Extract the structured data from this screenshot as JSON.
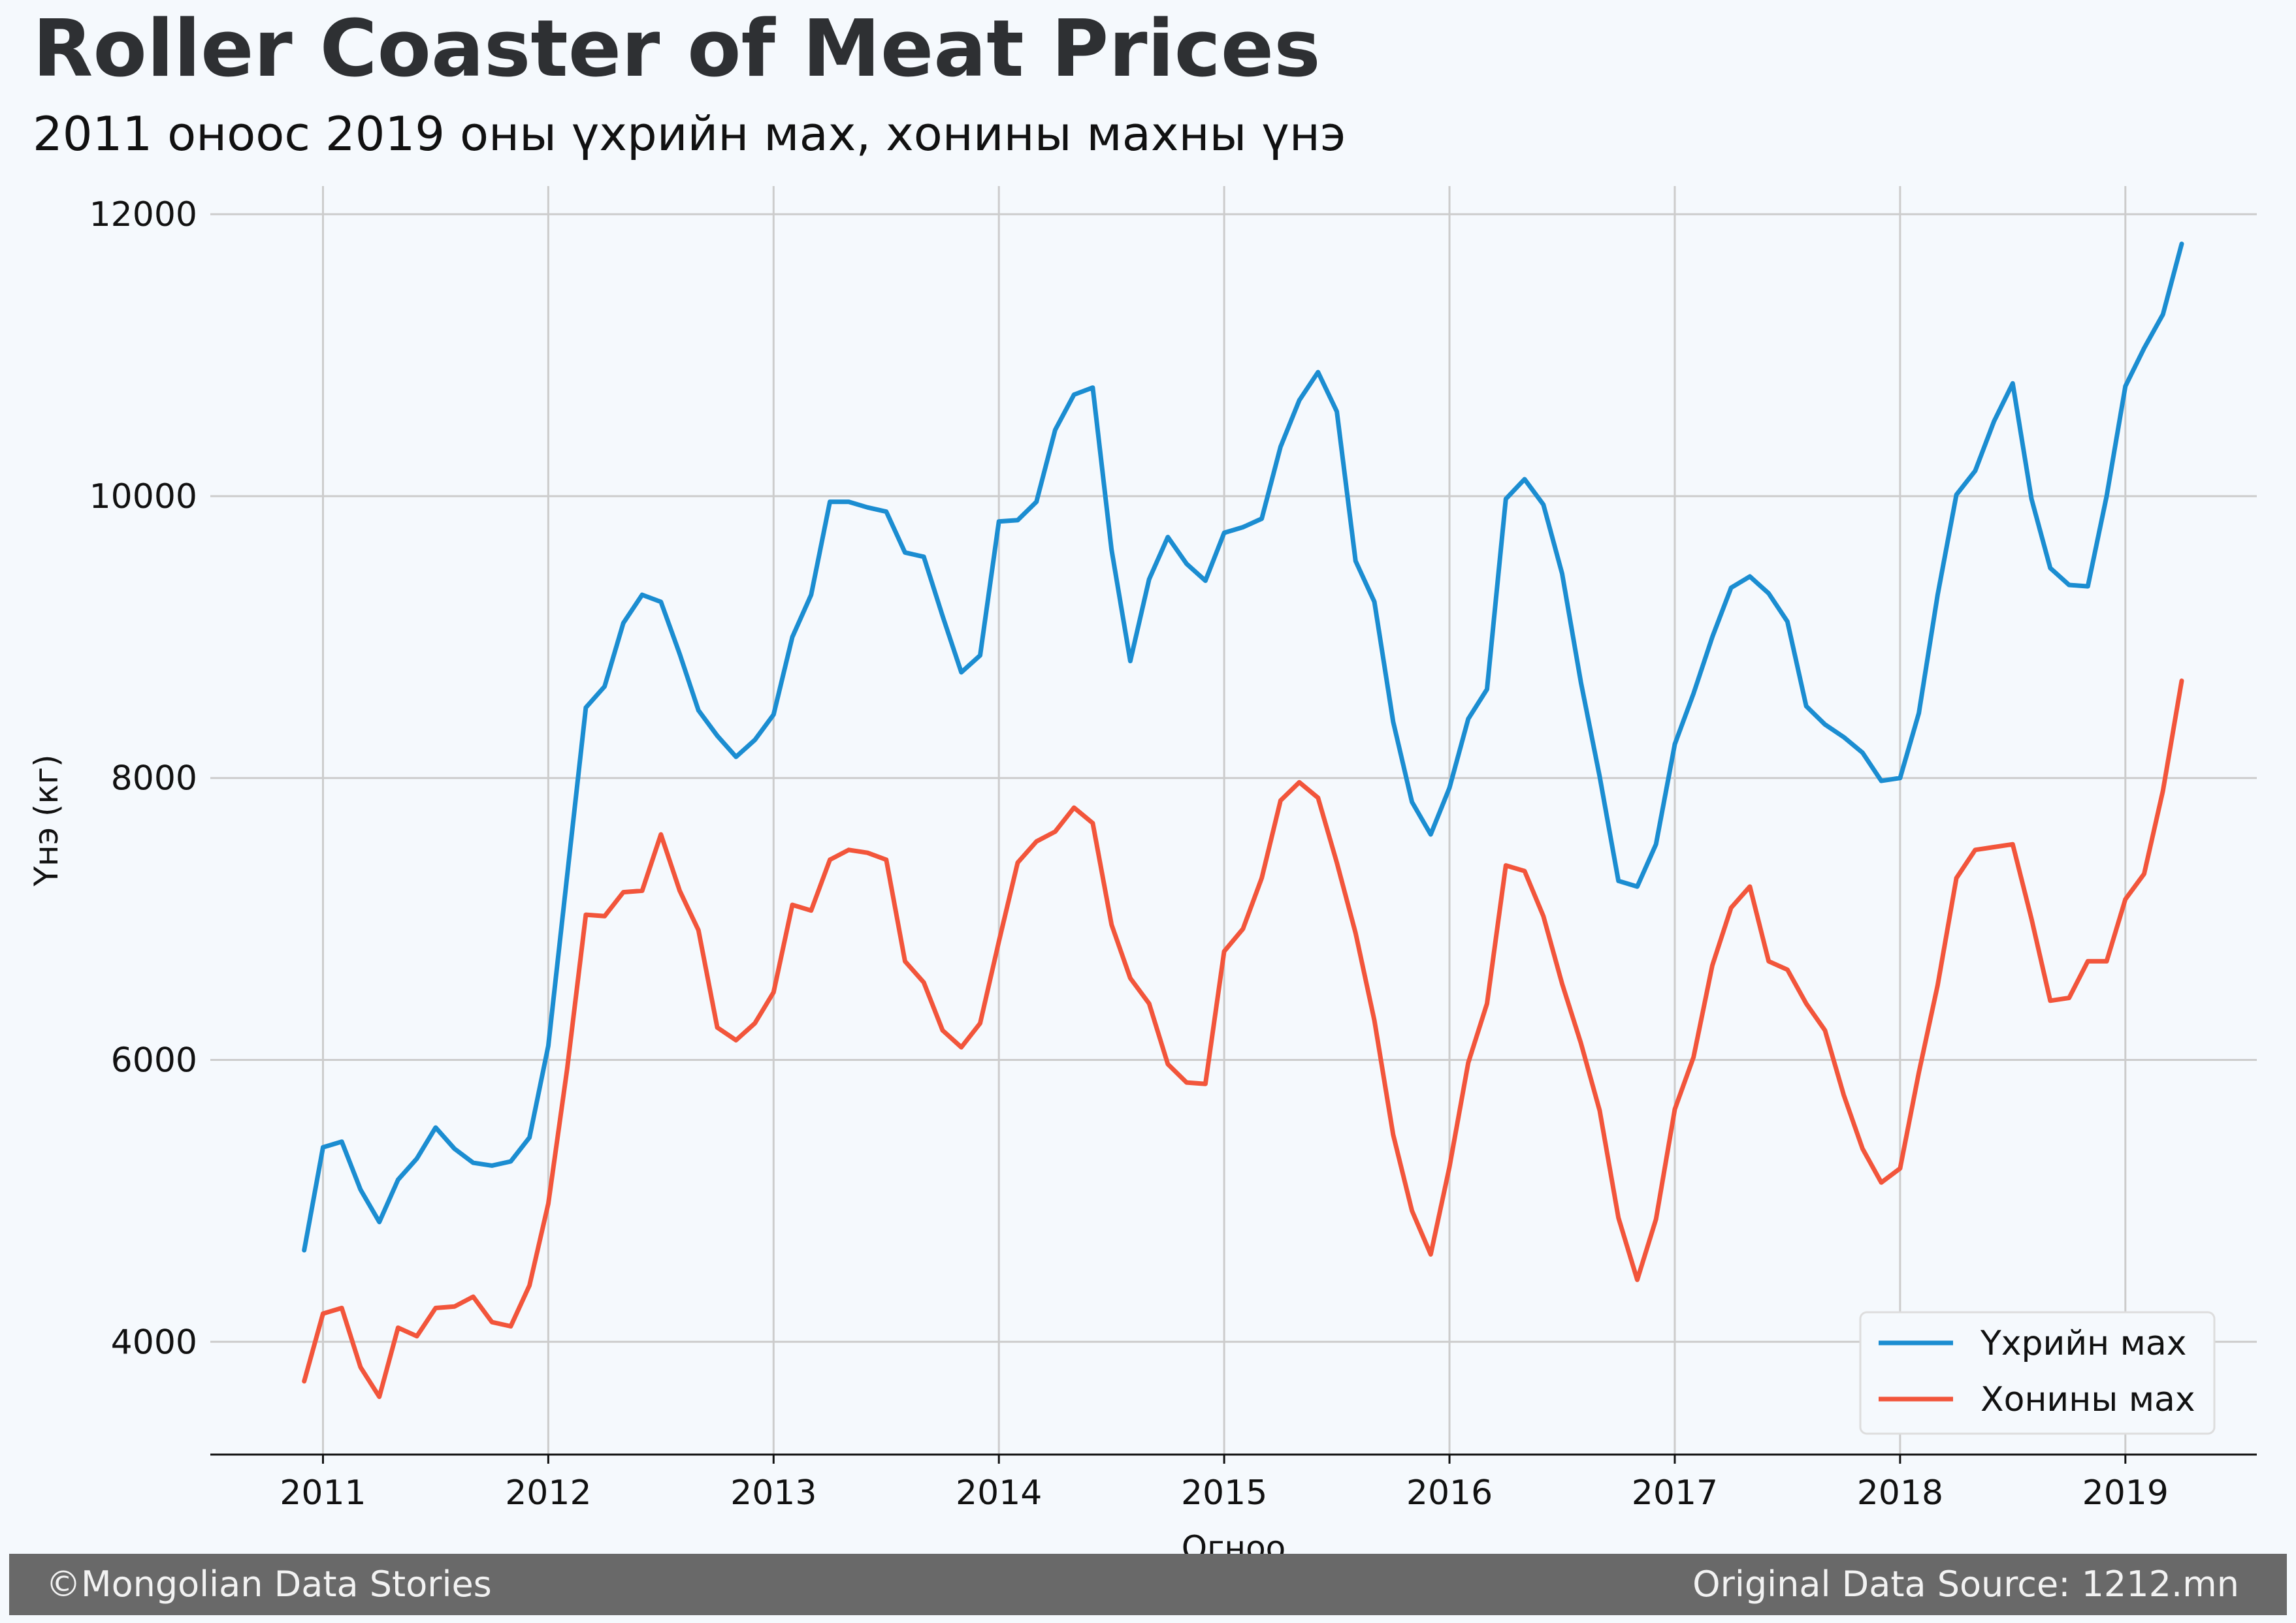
{
  "header": {
    "title": "Roller Coaster of Meat Prices",
    "subtitle": "2011 оноос 2019 оны үхрийн мах, хонины махны үнэ"
  },
  "footer": {
    "copyright": "©Mongolian Data Stories",
    "source": "Original Data Source: 1212.mn"
  },
  "colors": {
    "background": "#f5f9fd",
    "beef": "#1b8dd1",
    "mutton": "#f2553b",
    "footer_bar": "#696969",
    "grid": "#cccccc"
  },
  "chart_data": {
    "type": "line",
    "xlabel": "Огноо",
    "ylabel": "Үнэ (кг)",
    "x_tick_labels": [
      "2011",
      "2012",
      "2013",
      "2014",
      "2015",
      "2016",
      "2017",
      "2018",
      "2019"
    ],
    "y_tick_labels": [
      "4000",
      "6000",
      "8000",
      "10000",
      "12000"
    ],
    "ylim": [
      3200,
      12200
    ],
    "xlim": [
      "2010-07",
      "2019-08"
    ],
    "grid": true,
    "legend_position": "bottom-right",
    "x": [
      "2010-12",
      "2011-01",
      "2011-02",
      "2011-03",
      "2011-04",
      "2011-05",
      "2011-06",
      "2011-07",
      "2011-08",
      "2011-09",
      "2011-10",
      "2011-11",
      "2011-12",
      "2012-01",
      "2012-02",
      "2012-03",
      "2012-04",
      "2012-05",
      "2012-06",
      "2012-07",
      "2012-08",
      "2012-09",
      "2012-10",
      "2012-11",
      "2012-12",
      "2013-01",
      "2013-02",
      "2013-03",
      "2013-04",
      "2013-05",
      "2013-06",
      "2013-07",
      "2013-08",
      "2013-09",
      "2013-10",
      "2013-11",
      "2013-12",
      "2014-01",
      "2014-02",
      "2014-03",
      "2014-04",
      "2014-05",
      "2014-06",
      "2014-07",
      "2014-08",
      "2014-09",
      "2014-10",
      "2014-11",
      "2014-12",
      "2015-01",
      "2015-02",
      "2015-03",
      "2015-04",
      "2015-05",
      "2015-06",
      "2015-07",
      "2015-08",
      "2015-09",
      "2015-10",
      "2015-11",
      "2015-12",
      "2016-01",
      "2016-02",
      "2016-03",
      "2016-04",
      "2016-05",
      "2016-06",
      "2016-07",
      "2016-08",
      "2016-09",
      "2016-10",
      "2016-11",
      "2016-12",
      "2017-01",
      "2017-02",
      "2017-03",
      "2017-04",
      "2017-05",
      "2017-06",
      "2017-07",
      "2017-08",
      "2017-09",
      "2017-10",
      "2017-11",
      "2017-12",
      "2018-01",
      "2018-02",
      "2018-03",
      "2018-04",
      "2018-05",
      "2018-06",
      "2018-07",
      "2018-08",
      "2018-09",
      "2018-10",
      "2018-11",
      "2018-12",
      "2019-01",
      "2019-02",
      "2019-03",
      "2019-04"
    ],
    "series": [
      {
        "name": "Үхрийн мах",
        "color": "#1b8dd1",
        "values": [
          4650,
          5380,
          5420,
          5080,
          4850,
          5150,
          5300,
          5520,
          5370,
          5270,
          5250,
          5280,
          5450,
          6100,
          7300,
          8500,
          8650,
          9100,
          9300,
          9250,
          8880,
          8480,
          8300,
          8150,
          8270,
          8450,
          9000,
          9300,
          9960,
          9960,
          9920,
          9890,
          9600,
          9570,
          9150,
          8750,
          8870,
          9820,
          9830,
          9960,
          10470,
          10720,
          10770,
          9620,
          8830,
          9410,
          9710,
          9520,
          9400,
          9740,
          9780,
          9840,
          10350,
          10680,
          10880,
          10600,
          9540,
          9250,
          8400,
          7830,
          7600,
          7930,
          8420,
          8630,
          9980,
          10120,
          9940,
          9450,
          8680,
          8010,
          7270,
          7230,
          7530,
          8240,
          8600,
          9000,
          9350,
          9430,
          9310,
          9110,
          8510,
          8380,
          8290,
          8180,
          7980,
          8000,
          8460,
          9300,
          10010,
          10180,
          10530,
          10800,
          9980,
          9490,
          9370,
          9360,
          10000,
          10780,
          11050,
          11290,
          11790
        ]
      },
      {
        "name": "Хонины мах",
        "color": "#f2553b",
        "values": [
          3720,
          4200,
          4240,
          3820,
          3610,
          4100,
          4040,
          4240,
          4250,
          4320,
          4140,
          4110,
          4400,
          4980,
          5930,
          7030,
          7020,
          7190,
          7200,
          7600,
          7200,
          6920,
          6230,
          6140,
          6260,
          6480,
          7100,
          7060,
          7420,
          7490,
          7470,
          7420,
          6700,
          6550,
          6210,
          6090,
          6260,
          6840,
          7400,
          7550,
          7620,
          7790,
          7680,
          6960,
          6580,
          6400,
          5970,
          5840,
          5830,
          6770,
          6930,
          7290,
          7840,
          7970,
          7860,
          7400,
          6900,
          6280,
          5470,
          4930,
          4620,
          5240,
          5980,
          6400,
          7380,
          7340,
          7020,
          6540,
          6120,
          5640,
          4880,
          4440,
          4870,
          5650,
          6020,
          6670,
          7080,
          7230,
          6700,
          6640,
          6400,
          6210,
          5750,
          5370,
          5130,
          5230,
          5910,
          6530,
          7290,
          7490,
          7510,
          7530,
          7000,
          6420,
          6440,
          6700,
          6700,
          7140,
          7320,
          7910,
          8690
        ]
      }
    ]
  }
}
